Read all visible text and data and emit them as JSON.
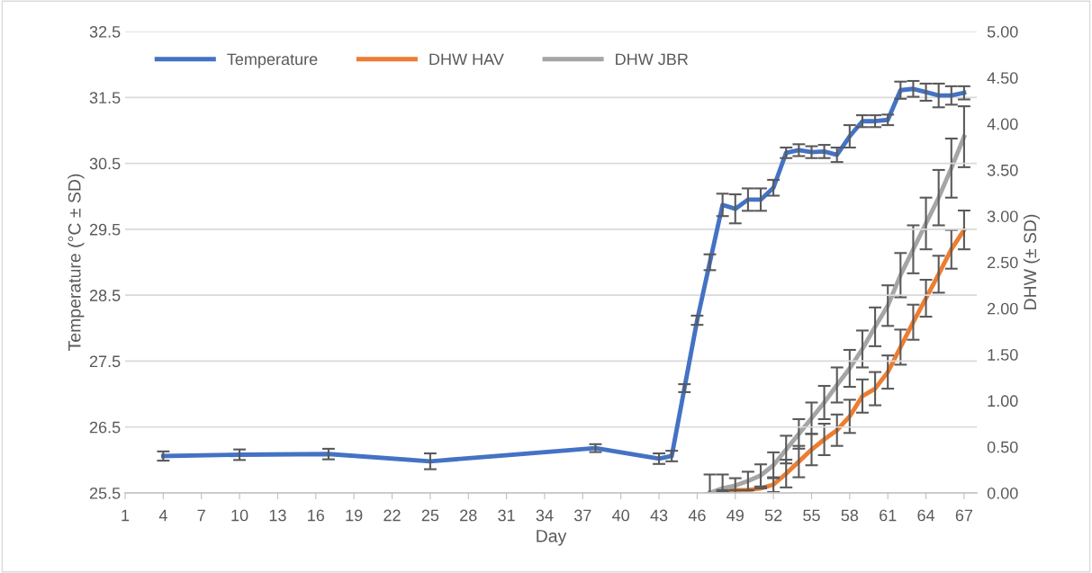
{
  "chart_data": {
    "type": "line",
    "xlabel": "Day",
    "ylabel": "Temperature (°C ± SD)",
    "y2label": "DHW (± SD)",
    "xlim": [
      1,
      68
    ],
    "xticks": [
      1,
      4,
      7,
      10,
      13,
      16,
      19,
      22,
      25,
      28,
      31,
      34,
      37,
      40,
      43,
      46,
      49,
      52,
      55,
      58,
      61,
      64,
      67
    ],
    "ylim": [
      25.5,
      32.5
    ],
    "yticks": [
      {
        "value": 25.5,
        "label": "25.5"
      },
      {
        "value": 26.5,
        "label": "26.5"
      },
      {
        "value": 27.5,
        "label": "27.5"
      },
      {
        "value": 28.5,
        "label": "28.5"
      },
      {
        "value": 29.5,
        "label": "29.5"
      },
      {
        "value": 30.5,
        "label": "30.5"
      },
      {
        "value": 31.5,
        "label": "31.5"
      },
      {
        "value": 32.5,
        "label": "32.5"
      }
    ],
    "y2lim": [
      0,
      5
    ],
    "y2ticks": [
      {
        "value": 0,
        "label": "0.00"
      },
      {
        "value": 0.5,
        "label": "0.50"
      },
      {
        "value": 1,
        "label": "1.00"
      },
      {
        "value": 1.5,
        "label": "1.50"
      },
      {
        "value": 2,
        "label": "2.00"
      },
      {
        "value": 2.5,
        "label": "2.50"
      },
      {
        "value": 3,
        "label": "3.00"
      },
      {
        "value": 3.5,
        "label": "3.50"
      },
      {
        "value": 4,
        "label": "4.00"
      },
      {
        "value": 4.5,
        "label": "4.50"
      },
      {
        "value": 5,
        "label": "5.00"
      }
    ],
    "grid": "y",
    "legend": "top left",
    "marker": "none",
    "line_style": "solid",
    "series": [
      {
        "name": "Temperature",
        "color": "#4472c4",
        "x": [
          4,
          10,
          17,
          25,
          38,
          43,
          44,
          45,
          46,
          47,
          48,
          49,
          50,
          51,
          52,
          53,
          54,
          55,
          56,
          57,
          58,
          59,
          60,
          61,
          62,
          63,
          64,
          65,
          66,
          67
        ],
        "values": [
          26.06,
          26.08,
          26.09,
          25.98,
          26.18,
          26.02,
          26.06,
          27.09,
          28.12,
          29.0,
          29.87,
          29.81,
          29.95,
          29.95,
          30.13,
          30.66,
          30.7,
          30.67,
          30.68,
          30.63,
          30.91,
          31.14,
          31.14,
          31.16,
          31.61,
          31.63,
          31.58,
          31.53,
          31.53,
          31.57
        ],
        "errors": [
          0.07,
          0.08,
          0.08,
          0.12,
          0.06,
          0.08,
          0.08,
          0.06,
          0.07,
          0.12,
          0.17,
          0.22,
          0.17,
          0.17,
          0.12,
          0.08,
          0.09,
          0.09,
          0.1,
          0.11,
          0.17,
          0.09,
          0.09,
          0.08,
          0.13,
          0.12,
          0.13,
          0.18,
          0.14,
          0.1
        ]
      },
      {
        "name": "DHW HAV",
        "color": "#ed7d31",
        "axis": "y2",
        "x": [
          47,
          48,
          49,
          50,
          51,
          52,
          53,
          54,
          55,
          56,
          57,
          58,
          59,
          60,
          61,
          62,
          63,
          64,
          65,
          66,
          67
        ],
        "values": [
          0,
          0.01,
          0.03,
          0.03,
          0.05,
          0.09,
          0.21,
          0.34,
          0.47,
          0.58,
          0.68,
          0.83,
          1.05,
          1.13,
          1.31,
          1.58,
          1.85,
          2.11,
          2.37,
          2.64,
          2.85
        ],
        "errors": [
          null,
          null,
          null,
          null,
          null,
          0.08,
          0.15,
          0.17,
          0.17,
          0.17,
          0.17,
          0.18,
          0.18,
          0.18,
          0.18,
          0.19,
          0.19,
          0.2,
          0.2,
          0.21,
          0.21
        ]
      },
      {
        "name": "DHW JBR",
        "color": "#a5a5a5",
        "axis": "y2",
        "x": [
          47,
          48,
          49,
          50,
          51,
          52,
          53,
          54,
          55,
          56,
          57,
          58,
          59,
          60,
          61,
          62,
          63,
          64,
          65,
          66,
          67
        ],
        "values": [
          0,
          0.05,
          0.08,
          0.13,
          0.19,
          0.3,
          0.47,
          0.64,
          0.81,
          0.98,
          1.17,
          1.35,
          1.56,
          1.8,
          2.03,
          2.36,
          2.64,
          2.92,
          3.2,
          3.52,
          3.86
        ],
        "errors": [
          [
            0,
            0.2
          ],
          [
            0.03,
            0.2
          ],
          0.08,
          0.1,
          0.12,
          0.14,
          0.15,
          0.16,
          0.17,
          0.18,
          0.19,
          0.2,
          0.2,
          0.21,
          0.22,
          0.24,
          0.26,
          0.28,
          0.3,
          0.32,
          0.33
        ]
      }
    ]
  }
}
